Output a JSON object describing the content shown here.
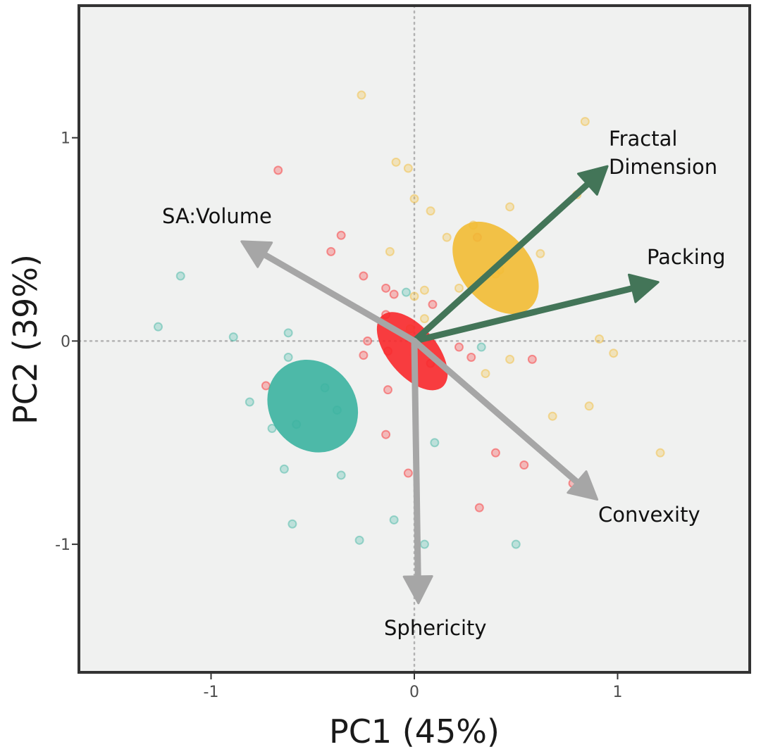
{
  "chart_data": {
    "type": "scatter",
    "xlabel": "PC1 (45%)",
    "ylabel": "PC2 (39%)",
    "xlim": [
      -1.65,
      1.65
    ],
    "ylim": [
      -1.63,
      1.65
    ],
    "x_ticks": [
      -1,
      0,
      1
    ],
    "x_tick_labels": [
      "-1",
      "0",
      "1"
    ],
    "y_ticks": [
      -1,
      0,
      1
    ],
    "y_tick_labels": [
      "-1",
      "0",
      "1"
    ],
    "grid": false,
    "reference_lines": {
      "x": 0,
      "y": 0,
      "style": "dotted"
    },
    "legend": "none",
    "colors": {
      "teal": "#3bb3a0",
      "red": "#f8282b",
      "yellow": "#f2bb33",
      "active_loading": "#437558",
      "inactive_loading": "#a6a6a6",
      "panel_bg": "#f0f1f0"
    },
    "series": [
      {
        "color": "#3bb3a0",
        "points": [
          [
            -1.15,
            0.32
          ],
          [
            -1.26,
            0.07
          ],
          [
            -0.89,
            0.02
          ],
          [
            -0.62,
            0.04
          ],
          [
            -0.62,
            -0.08
          ],
          [
            -0.44,
            -0.23
          ],
          [
            -0.38,
            -0.34
          ],
          [
            -0.81,
            -0.3
          ],
          [
            -0.7,
            -0.43
          ],
          [
            -0.58,
            -0.41
          ],
          [
            -0.64,
            -0.63
          ],
          [
            -0.36,
            -0.66
          ],
          [
            -0.6,
            -0.9
          ],
          [
            -0.27,
            -0.98
          ],
          [
            -0.1,
            -0.88
          ],
          [
            0.05,
            -1.0
          ],
          [
            0.1,
            -0.5
          ],
          [
            -0.04,
            0.24
          ],
          [
            0.33,
            -0.03
          ],
          [
            0.5,
            -1.0
          ]
        ]
      },
      {
        "color": "#f8282b",
        "points": [
          [
            -0.67,
            0.84
          ],
          [
            -0.36,
            0.52
          ],
          [
            -0.41,
            0.44
          ],
          [
            -0.25,
            0.32
          ],
          [
            -0.14,
            0.26
          ],
          [
            -0.1,
            0.23
          ],
          [
            -0.14,
            0.13
          ],
          [
            -0.23,
            0.0
          ],
          [
            -0.25,
            -0.07
          ],
          [
            -0.13,
            -0.05
          ],
          [
            -0.73,
            -0.22
          ],
          [
            -0.13,
            -0.24
          ],
          [
            -0.14,
            -0.46
          ],
          [
            -0.03,
            -0.65
          ],
          [
            0.02,
            -0.02
          ],
          [
            0.08,
            -0.11
          ],
          [
            0.09,
            0.18
          ],
          [
            0.22,
            -0.03
          ],
          [
            0.28,
            -0.08
          ],
          [
            0.4,
            -0.55
          ],
          [
            0.54,
            -0.61
          ],
          [
            0.32,
            -0.82
          ],
          [
            0.58,
            -0.09
          ],
          [
            0.78,
            -0.7
          ],
          [
            0.31,
            0.51
          ]
        ]
      },
      {
        "color": "#f2bb33",
        "points": [
          [
            -0.26,
            1.21
          ],
          [
            0.84,
            1.08
          ],
          [
            -0.09,
            0.88
          ],
          [
            -0.03,
            0.85
          ],
          [
            0.0,
            0.7
          ],
          [
            0.08,
            0.64
          ],
          [
            0.47,
            0.66
          ],
          [
            0.29,
            0.57
          ],
          [
            0.16,
            0.51
          ],
          [
            -0.12,
            0.44
          ],
          [
            0.62,
            0.43
          ],
          [
            0.42,
            0.35
          ],
          [
            0.4,
            0.33
          ],
          [
            0.05,
            0.25
          ],
          [
            0.0,
            0.22
          ],
          [
            0.05,
            0.11
          ],
          [
            0.91,
            0.01
          ],
          [
            0.98,
            -0.06
          ],
          [
            0.47,
            -0.09
          ],
          [
            0.35,
            -0.16
          ],
          [
            0.68,
            -0.37
          ],
          [
            0.86,
            -0.32
          ],
          [
            1.21,
            -0.55
          ],
          [
            0.8,
            0.72
          ],
          [
            -0.02,
            0.06
          ],
          [
            0.22,
            0.26
          ]
        ]
      }
    ],
    "ellipses": [
      {
        "color": "#3bb3a0",
        "center": [
          -0.5,
          -0.32
        ],
        "radii": [
          0.21,
          0.24
        ],
        "angle_deg": -40
      },
      {
        "color": "#f8282b",
        "center": [
          -0.01,
          -0.05
        ],
        "radii": [
          0.12,
          0.23
        ],
        "angle_deg": -40
      },
      {
        "color": "#f2bb33",
        "center": [
          0.4,
          0.36
        ],
        "radii": [
          0.17,
          0.26
        ],
        "angle_deg": -40
      }
    ],
    "loadings": [
      {
        "label": "Fractal Dimension",
        "label_lines": [
          "Fractal",
          "Dimension"
        ],
        "x": 0.95,
        "y": 0.86,
        "color": "#437558"
      },
      {
        "label": "Packing",
        "label_lines": [
          "Packing"
        ],
        "x": 1.2,
        "y": 0.29,
        "color": "#437558"
      },
      {
        "label": "SA:Volume",
        "label_lines": [
          "SA:Volume"
        ],
        "x": -0.85,
        "y": 0.49,
        "color": "#a6a6a6"
      },
      {
        "label": "Convexity",
        "label_lines": [
          "Convexity"
        ],
        "x": 0.9,
        "y": -0.78,
        "color": "#a6a6a6"
      },
      {
        "label": "Sphericity",
        "label_lines": [
          "Sphericity"
        ],
        "x": 0.02,
        "y": -1.29,
        "color": "#a6a6a6"
      }
    ]
  }
}
